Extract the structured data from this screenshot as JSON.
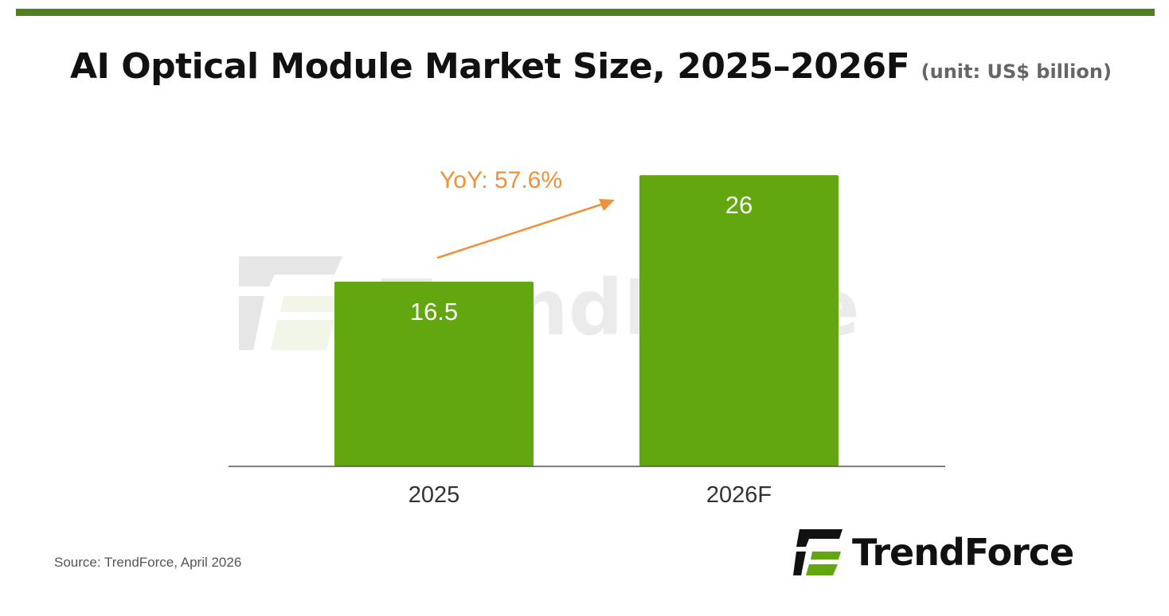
{
  "title": "AI Optical Module Market Size, 2025–2026F",
  "unit": "(unit: US$ billion)",
  "source": "Source: TrendForce, April 2026",
  "brand": "TrendForce",
  "colors": {
    "rule": "#4f7f1f",
    "bar": "#62a710",
    "bar_label": "#ffffff",
    "annotation": "#f0903a",
    "axis": "#555555",
    "watermark": "#d9d9d9"
  },
  "chart_data": {
    "type": "bar",
    "categories": [
      "2025",
      "2026F"
    ],
    "values": [
      16.5,
      26
    ],
    "data_labels": [
      "16.5",
      "26"
    ],
    "annotation": "YoY: 57.6%",
    "ylim": [
      0,
      28
    ],
    "grid": false,
    "legend": "none"
  }
}
